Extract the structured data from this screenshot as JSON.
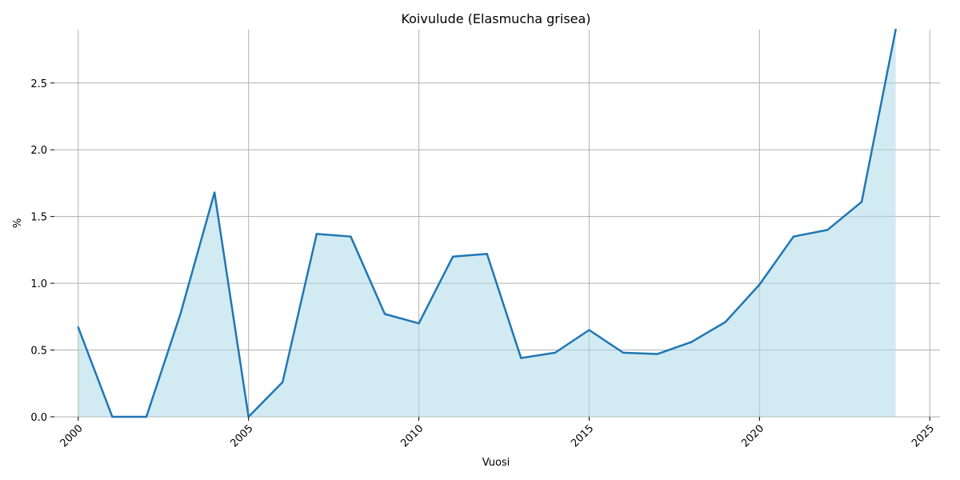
{
  "chart_data": {
    "type": "area",
    "title": "Koivulude (Elasmucha grisea)",
    "xlabel": "Vuosi",
    "ylabel": "%",
    "x": [
      2000,
      2001,
      2002,
      2003,
      2004,
      2005,
      2006,
      2007,
      2008,
      2009,
      2010,
      2011,
      2012,
      2013,
      2014,
      2015,
      2016,
      2017,
      2018,
      2019,
      2020,
      2021,
      2022,
      2023,
      2024
    ],
    "series": [
      {
        "values": [
          0.67,
          0.0,
          0.0,
          0.77,
          1.68,
          0.0,
          0.26,
          1.37,
          1.35,
          0.77,
          0.7,
          1.2,
          1.22,
          0.44,
          0.48,
          0.65,
          0.48,
          0.47,
          0.56,
          0.71,
          0.99,
          1.35,
          1.4,
          1.61,
          2.9
        ],
        "color": "#1f77b4",
        "fill": "#add8e6"
      }
    ],
    "xlim": [
      1999.3,
      2025.3
    ],
    "ylim": [
      0,
      2.9
    ],
    "xticks": [
      "2000",
      "2005",
      "2010",
      "2015",
      "2020",
      "2025"
    ],
    "yticks": [
      "0.0",
      "0.5",
      "1.0",
      "1.5",
      "2.0",
      "2.5"
    ],
    "grid": true
  }
}
